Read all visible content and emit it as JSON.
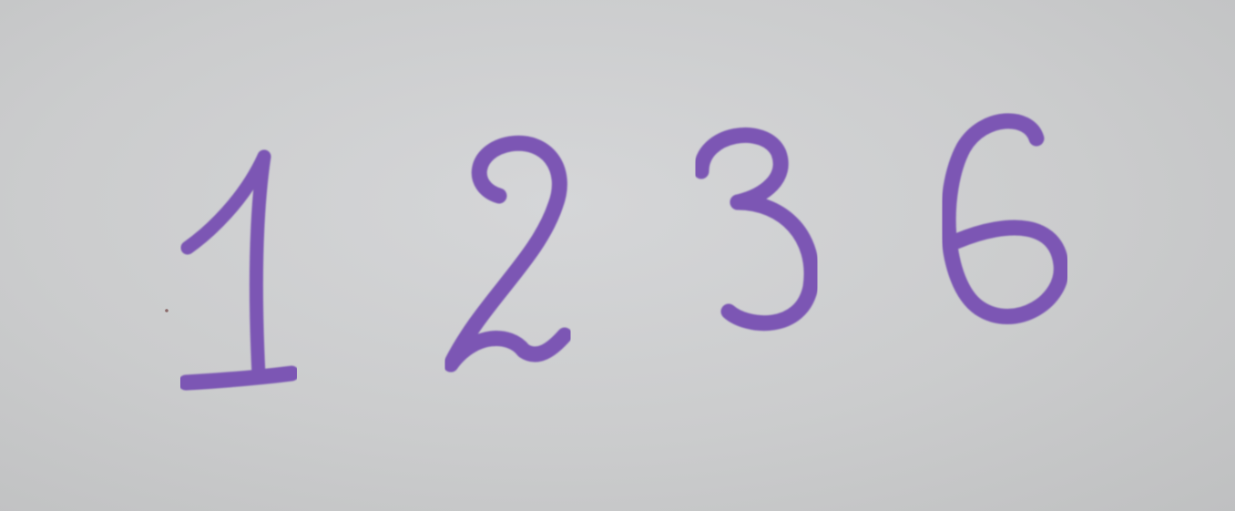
{
  "photo": {
    "digits": [
      "1",
      "2",
      "3",
      "6"
    ],
    "ink_color": "#7b57b4",
    "paper_color": "#cdcecf"
  }
}
